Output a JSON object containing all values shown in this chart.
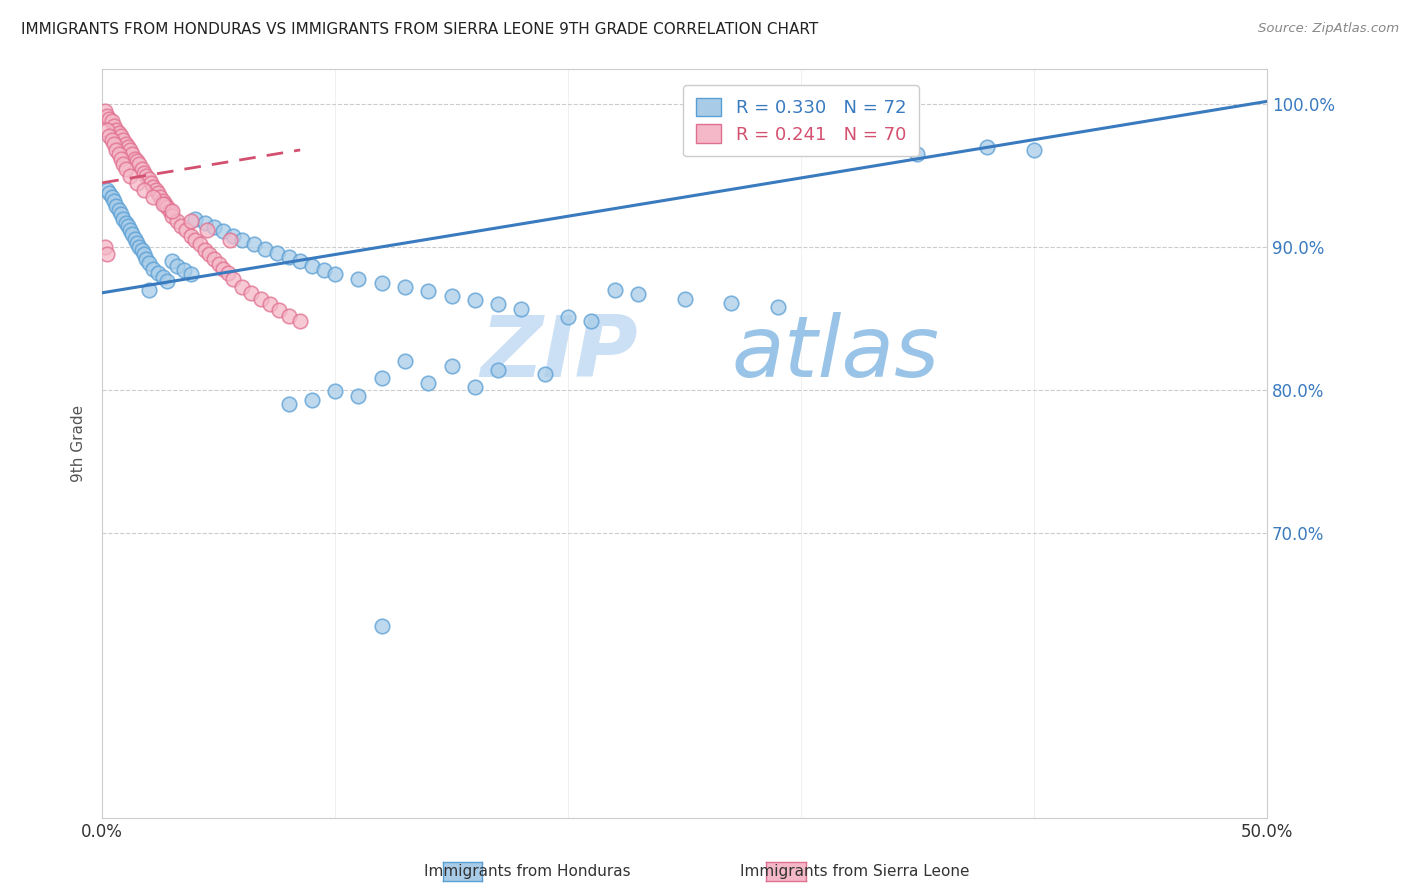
{
  "title": "IMMIGRANTS FROM HONDURAS VS IMMIGRANTS FROM SIERRA LEONE 9TH GRADE CORRELATION CHART",
  "source": "Source: ZipAtlas.com",
  "xlabel_legend1": "Immigrants from Honduras",
  "xlabel_legend2": "Immigrants from Sierra Leone",
  "ylabel": "9th Grade",
  "x_min": 0.0,
  "x_max": 0.5,
  "y_min": 0.5,
  "y_max": 1.025,
  "right_yticks": [
    1.0,
    0.9,
    0.8,
    0.7
  ],
  "right_ytick_labels": [
    "100.0%",
    "90.0%",
    "80.0%",
    "70.0%"
  ],
  "x_ticks": [
    0.0,
    0.1,
    0.2,
    0.3,
    0.4,
    0.5
  ],
  "x_tick_labels": [
    "0.0%",
    "",
    "",
    "",
    "",
    "50.0%"
  ],
  "R_blue": 0.33,
  "N_blue": 72,
  "R_pink": 0.241,
  "N_pink": 70,
  "blue_color": "#a8cce8",
  "blue_edge_color": "#5a9fd4",
  "blue_line_color": "#3a7abf",
  "pink_color": "#f4b8c8",
  "pink_edge_color": "#e07090",
  "pink_line_color": "#d45070",
  "legend_blue_text": "#3a7abf",
  "legend_pink_text": "#d45070",
  "watermark_zip_color": "#cce0f5",
  "watermark_atlas_color": "#99c4e8",
  "grid_color": "#cccccc",
  "spine_color": "#cccccc",
  "title_color": "#222222",
  "source_color": "#888888",
  "axis_label_color": "#555555",
  "tick_color": "#333333",
  "blue_trend_x0": 0.0,
  "blue_trend_y0": 0.868,
  "blue_trend_x1": 0.5,
  "blue_trend_y1": 1.002,
  "pink_trend_x0": 0.0,
  "pink_trend_y0": 0.945,
  "pink_trend_x1": 0.085,
  "pink_trend_y1": 0.968,
  "blue_x": [
    0.002,
    0.003,
    0.004,
    0.005,
    0.006,
    0.007,
    0.008,
    0.009,
    0.01,
    0.011,
    0.012,
    0.013,
    0.014,
    0.015,
    0.016,
    0.017,
    0.018,
    0.019,
    0.02,
    0.022,
    0.024,
    0.026,
    0.028,
    0.03,
    0.032,
    0.035,
    0.038,
    0.04,
    0.044,
    0.048,
    0.052,
    0.056,
    0.06,
    0.065,
    0.07,
    0.075,
    0.08,
    0.085,
    0.09,
    0.095,
    0.1,
    0.11,
    0.12,
    0.13,
    0.14,
    0.15,
    0.16,
    0.17,
    0.18,
    0.2,
    0.21,
    0.22,
    0.23,
    0.25,
    0.27,
    0.29,
    0.13,
    0.15,
    0.17,
    0.19,
    0.12,
    0.14,
    0.16,
    0.1,
    0.11,
    0.09,
    0.08,
    0.38,
    0.4,
    0.35,
    0.12,
    0.02
  ],
  "blue_y": [
    0.94,
    0.938,
    0.935,
    0.932,
    0.929,
    0.926,
    0.923,
    0.92,
    0.917,
    0.915,
    0.912,
    0.909,
    0.906,
    0.903,
    0.9,
    0.898,
    0.895,
    0.892,
    0.889,
    0.885,
    0.882,
    0.879,
    0.876,
    0.89,
    0.887,
    0.884,
    0.881,
    0.92,
    0.917,
    0.914,
    0.911,
    0.908,
    0.905,
    0.902,
    0.899,
    0.896,
    0.893,
    0.89,
    0.887,
    0.884,
    0.881,
    0.878,
    0.875,
    0.872,
    0.869,
    0.866,
    0.863,
    0.86,
    0.857,
    0.851,
    0.848,
    0.87,
    0.867,
    0.864,
    0.861,
    0.858,
    0.82,
    0.817,
    0.814,
    0.811,
    0.808,
    0.805,
    0.802,
    0.799,
    0.796,
    0.793,
    0.79,
    0.97,
    0.968,
    0.965,
    0.635,
    0.87
  ],
  "pink_x": [
    0.001,
    0.002,
    0.003,
    0.004,
    0.005,
    0.006,
    0.007,
    0.008,
    0.009,
    0.01,
    0.011,
    0.012,
    0.013,
    0.014,
    0.015,
    0.016,
    0.017,
    0.018,
    0.019,
    0.02,
    0.021,
    0.022,
    0.023,
    0.024,
    0.025,
    0.026,
    0.027,
    0.028,
    0.029,
    0.03,
    0.032,
    0.034,
    0.036,
    0.038,
    0.04,
    0.042,
    0.044,
    0.046,
    0.048,
    0.05,
    0.052,
    0.054,
    0.056,
    0.06,
    0.064,
    0.068,
    0.072,
    0.076,
    0.08,
    0.085,
    0.002,
    0.003,
    0.004,
    0.005,
    0.006,
    0.007,
    0.008,
    0.009,
    0.01,
    0.012,
    0.015,
    0.018,
    0.022,
    0.026,
    0.03,
    0.038,
    0.045,
    0.055,
    0.001,
    0.002
  ],
  "pink_y": [
    0.995,
    0.992,
    0.99,
    0.988,
    0.985,
    0.982,
    0.98,
    0.978,
    0.975,
    0.972,
    0.97,
    0.968,
    0.965,
    0.962,
    0.96,
    0.958,
    0.955,
    0.952,
    0.95,
    0.948,
    0.945,
    0.942,
    0.94,
    0.938,
    0.935,
    0.932,
    0.93,
    0.928,
    0.925,
    0.922,
    0.918,
    0.915,
    0.912,
    0.908,
    0.905,
    0.902,
    0.898,
    0.895,
    0.892,
    0.888,
    0.885,
    0.882,
    0.878,
    0.872,
    0.868,
    0.864,
    0.86,
    0.856,
    0.852,
    0.848,
    0.982,
    0.978,
    0.975,
    0.972,
    0.968,
    0.965,
    0.962,
    0.958,
    0.955,
    0.95,
    0.945,
    0.94,
    0.935,
    0.93,
    0.925,
    0.918,
    0.912,
    0.905,
    0.9,
    0.895
  ]
}
